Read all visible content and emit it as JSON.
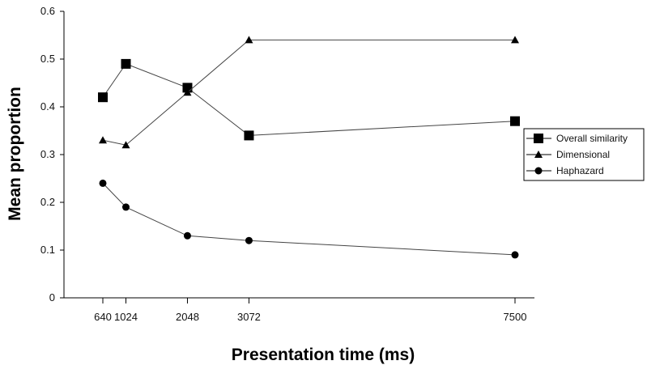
{
  "chart_data": {
    "type": "line",
    "title": "",
    "xlabel": "Presentation time (ms)",
    "ylabel": "Mean proportion",
    "x": [
      640,
      1024,
      2048,
      3072,
      7500
    ],
    "x_tick_labels": [
      "640",
      "1024",
      "2048",
      "3072",
      "7500"
    ],
    "xlim": [
      0,
      7500
    ],
    "ylim": [
      0,
      0.6
    ],
    "y_ticks": [
      0,
      0.1,
      0.2,
      0.3,
      0.4,
      0.5,
      0.6
    ],
    "y_tick_labels": [
      "0",
      "0.1",
      "0.2",
      "0.3",
      "0.4",
      "0.5",
      "0.6"
    ],
    "grid": false,
    "legend_position": "right",
    "series": [
      {
        "name": "Overall similarity",
        "marker": "square",
        "values": [
          0.42,
          0.49,
          0.44,
          0.34,
          0.37
        ]
      },
      {
        "name": "Dimensional",
        "marker": "triangle",
        "values": [
          0.33,
          0.32,
          0.43,
          0.54,
          0.54
        ]
      },
      {
        "name": "Haphazard",
        "marker": "circle",
        "values": [
          0.24,
          0.19,
          0.13,
          0.12,
          0.09
        ]
      }
    ],
    "colors": {
      "line": "#444444",
      "marker": "#000000",
      "axis": "#000000"
    }
  }
}
